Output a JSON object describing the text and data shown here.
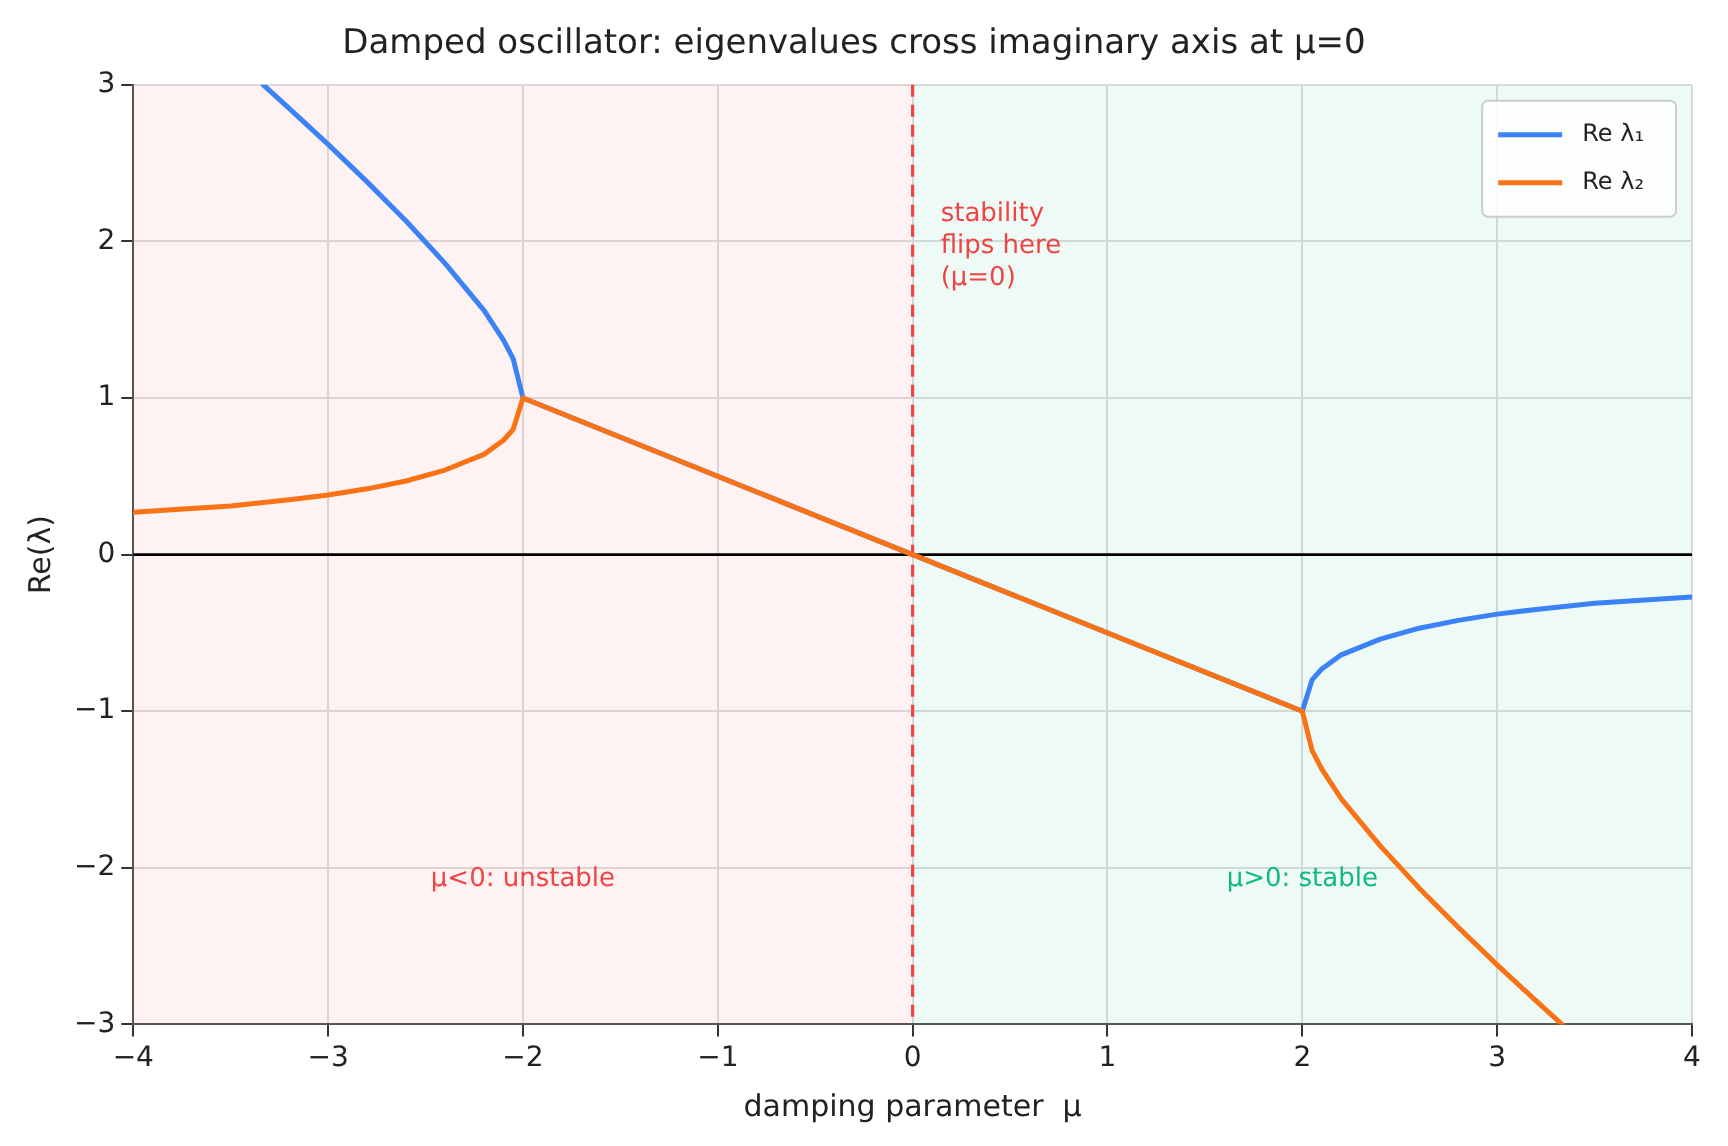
{
  "chart_data": {
    "type": "line",
    "title": "Damped oscillator: eigenvalues cross imaginary axis at μ=0",
    "xlabel": "damping parameter  μ",
    "ylabel": "Re(λ)",
    "xlim": [
      -4,
      4
    ],
    "xticks": [
      {
        "value": -4,
        "label": "−4"
      },
      {
        "value": -3,
        "label": "−3"
      },
      {
        "value": -2,
        "label": "−2"
      },
      {
        "value": -1,
        "label": "−1"
      },
      0,
      1,
      2,
      3,
      4
    ],
    "ylim": [
      -3,
      3
    ],
    "yticks": [
      {
        "value": -3,
        "label": "−3"
      },
      {
        "value": -2,
        "label": "−2"
      },
      {
        "value": -1,
        "label": "−1"
      },
      0,
      1,
      2,
      3
    ],
    "grid": true,
    "legend": "top right",
    "line_style": "solid",
    "marker": "none",
    "series": [
      {
        "name": "Re λ₁",
        "color": "#3b82f6",
        "x": [
          -3.333,
          -3.2,
          -3.0,
          -2.8,
          -2.6,
          -2.4,
          -2.2,
          -2.1,
          -2.05,
          -2.0,
          0,
          2.0,
          2.05,
          2.1,
          2.2,
          2.4,
          2.6,
          2.8,
          3.0,
          3.2,
          3.5,
          4.0
        ],
        "values": [
          3.0,
          2.85,
          2.62,
          2.38,
          2.13,
          1.86,
          1.56,
          1.37,
          1.25,
          1.0,
          0,
          -1.0,
          -0.8,
          -0.73,
          -0.64,
          -0.54,
          -0.47,
          -0.42,
          -0.38,
          -0.35,
          -0.31,
          -0.27
        ]
      },
      {
        "name": "Re λ₂",
        "color": "#f97316",
        "x": [
          -4.0,
          -3.5,
          -3.2,
          -3.0,
          -2.8,
          -2.6,
          -2.4,
          -2.2,
          -2.1,
          -2.05,
          -2.0,
          0,
          2.0,
          2.05,
          2.1,
          2.2,
          2.4,
          2.6,
          2.8,
          3.0,
          3.2,
          3.333
        ],
        "values": [
          0.27,
          0.31,
          0.35,
          0.38,
          0.42,
          0.47,
          0.54,
          0.64,
          0.73,
          0.8,
          1.0,
          0,
          -1.0,
          -1.25,
          -1.37,
          -1.56,
          -1.86,
          -2.13,
          -2.38,
          -2.62,
          -2.85,
          -3.0
        ]
      }
    ],
    "ref_lines": [
      {
        "axis": "y",
        "value": 0,
        "color": "#000000",
        "line_style": "solid"
      },
      {
        "axis": "x",
        "value": 0,
        "label": "stability\nflips here\n(μ=0)",
        "color": "#ef4444",
        "line_style": "dashed"
      }
    ],
    "bands": [
      {
        "axis": "x",
        "from": -4,
        "to": 0,
        "label": "μ<0: unstable",
        "color": "#ef4444"
      },
      {
        "axis": "x",
        "from": 0,
        "to": 4,
        "label": "μ>0: stable",
        "color": "#10b981"
      }
    ]
  }
}
